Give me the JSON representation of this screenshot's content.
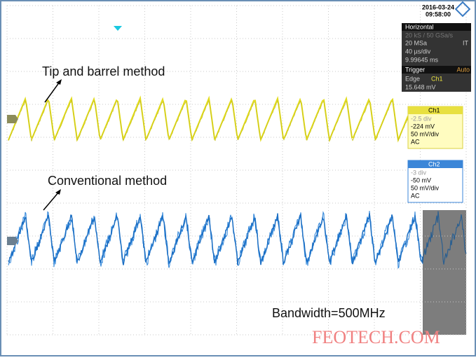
{
  "header": {
    "date": "2016-03-24",
    "time": "09:58:00"
  },
  "horizontal": {
    "title": "Horizontal",
    "lines": [
      "20 kS / 50 GSa/s",
      "20 MSa",
      "40 µs/div",
      "9.99645 ms"
    ],
    "mode": "IT"
  },
  "trigger": {
    "title": "Trigger",
    "mode": "Auto",
    "type": "Edge",
    "source": "Ch1",
    "level": "15.648 mV"
  },
  "channels": [
    {
      "name": "Ch1",
      "lines": [
        "-2.5 div",
        "-224 mV",
        "50 mV/div",
        "AC"
      ]
    },
    {
      "name": "Ch2",
      "lines": [
        "-3 div",
        "-50 mV",
        "50 mV/div",
        "AC"
      ]
    }
  ],
  "annotations": {
    "top": "Tip and barrel method",
    "bottom": "Conventional method",
    "bandwidth": "Bandwidth=500MHz",
    "watermark": "FEOTECH.COM"
  }
}
